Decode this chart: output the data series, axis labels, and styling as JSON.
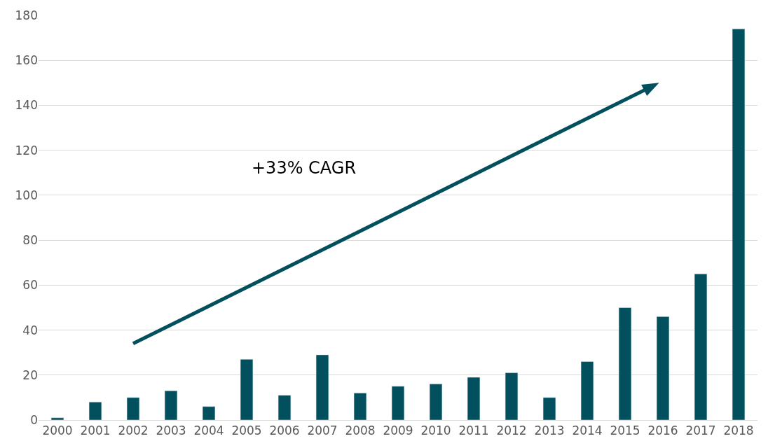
{
  "chart_data": {
    "type": "bar",
    "categories": [
      "2000",
      "2001",
      "2002",
      "2003",
      "2004",
      "2005",
      "2006",
      "2007",
      "2008",
      "2009",
      "2010",
      "2011",
      "2012",
      "2013",
      "2014",
      "2015",
      "2016",
      "2017",
      "2018"
    ],
    "values": [
      1,
      8,
      10,
      13,
      6,
      27,
      11,
      29,
      12,
      15,
      16,
      19,
      21,
      10,
      26,
      50,
      46,
      65,
      174
    ],
    "color": "#02505e",
    "ylim": [
      0,
      180
    ],
    "yticks": [
      0,
      20,
      40,
      60,
      80,
      100,
      120,
      140,
      160,
      180
    ],
    "grid": "y",
    "annotations": [
      "+33% CAGR"
    ]
  }
}
